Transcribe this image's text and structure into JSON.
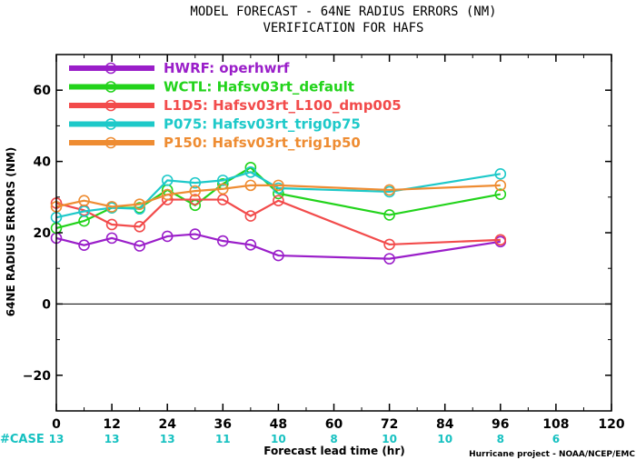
{
  "chart_data": {
    "type": "line",
    "title": "MODEL FORECAST - 64NE RADIUS ERRORS (NM)",
    "subtitle": "VERIFICATION FOR HAFS",
    "xlabel": "Forecast lead time (hr)",
    "ylabel": "64NE RADIUS ERRORS (NM)",
    "xlim": [
      0,
      120
    ],
    "ylim": [
      -30,
      70
    ],
    "x_ticks": [
      "0",
      "12",
      "24",
      "36",
      "48",
      "60",
      "72",
      "84",
      "96",
      "108",
      "120"
    ],
    "y_ticks": [
      "-20",
      "0",
      "20",
      "40",
      "60"
    ],
    "zero_line": true,
    "legend_position": "top-left",
    "series": [
      {
        "name": "HWRF: operhwrf",
        "color": "#9a1ec9",
        "x": [
          0,
          6,
          12,
          18,
          24,
          30,
          36,
          42,
          48,
          72,
          96
        ],
        "y": [
          18.5,
          16.5,
          18.5,
          16.3,
          19.0,
          19.6,
          17.7,
          16.6,
          13.6,
          12.7,
          17.5
        ]
      },
      {
        "name": "WCTL: Hafsv03rt_default",
        "color": "#22d31b",
        "x": [
          0,
          6,
          12,
          18,
          24,
          30,
          36,
          42,
          48,
          72,
          96
        ],
        "y": [
          21.3,
          23.3,
          27.0,
          27.0,
          32.0,
          27.7,
          33.7,
          38.3,
          31.0,
          25.0,
          30.8
        ]
      },
      {
        "name": "L1D5: Hafsv03rt_L100_dmp005",
        "color": "#f24b4b",
        "x": [
          0,
          6,
          12,
          18,
          24,
          30,
          36,
          42,
          48,
          72,
          96
        ],
        "y": [
          28.3,
          26.3,
          22.3,
          21.7,
          29.3,
          29.3,
          29.3,
          24.7,
          29.0,
          16.7,
          18.0
        ]
      },
      {
        "name": "P075: Hafsv03rt_trig0p75",
        "color": "#1dc9c9",
        "x": [
          0,
          6,
          12,
          18,
          24,
          30,
          36,
          42,
          48,
          72,
          96
        ],
        "y": [
          24.3,
          26.0,
          27.0,
          26.7,
          34.7,
          34.0,
          34.7,
          37.0,
          32.5,
          31.5,
          36.5
        ]
      },
      {
        "name": "P150: Hafsv03rt_trig1p50",
        "color": "#ee8c32",
        "x": [
          0,
          6,
          12,
          18,
          24,
          30,
          36,
          42,
          48,
          72,
          96
        ],
        "y": [
          27.3,
          29.0,
          27.3,
          28.0,
          30.7,
          31.7,
          32.3,
          33.3,
          33.3,
          32.0,
          33.3
        ]
      }
    ],
    "case_counts": {
      "label": "#CASE",
      "x": [
        0,
        12,
        24,
        36,
        48,
        60,
        72,
        84,
        96,
        108
      ],
      "values": [
        "13",
        "13",
        "13",
        "11",
        "10",
        "8",
        "10",
        "10",
        "8",
        "6"
      ]
    }
  },
  "credit": "Hurricane project - NOAA/NCEP/EMC"
}
